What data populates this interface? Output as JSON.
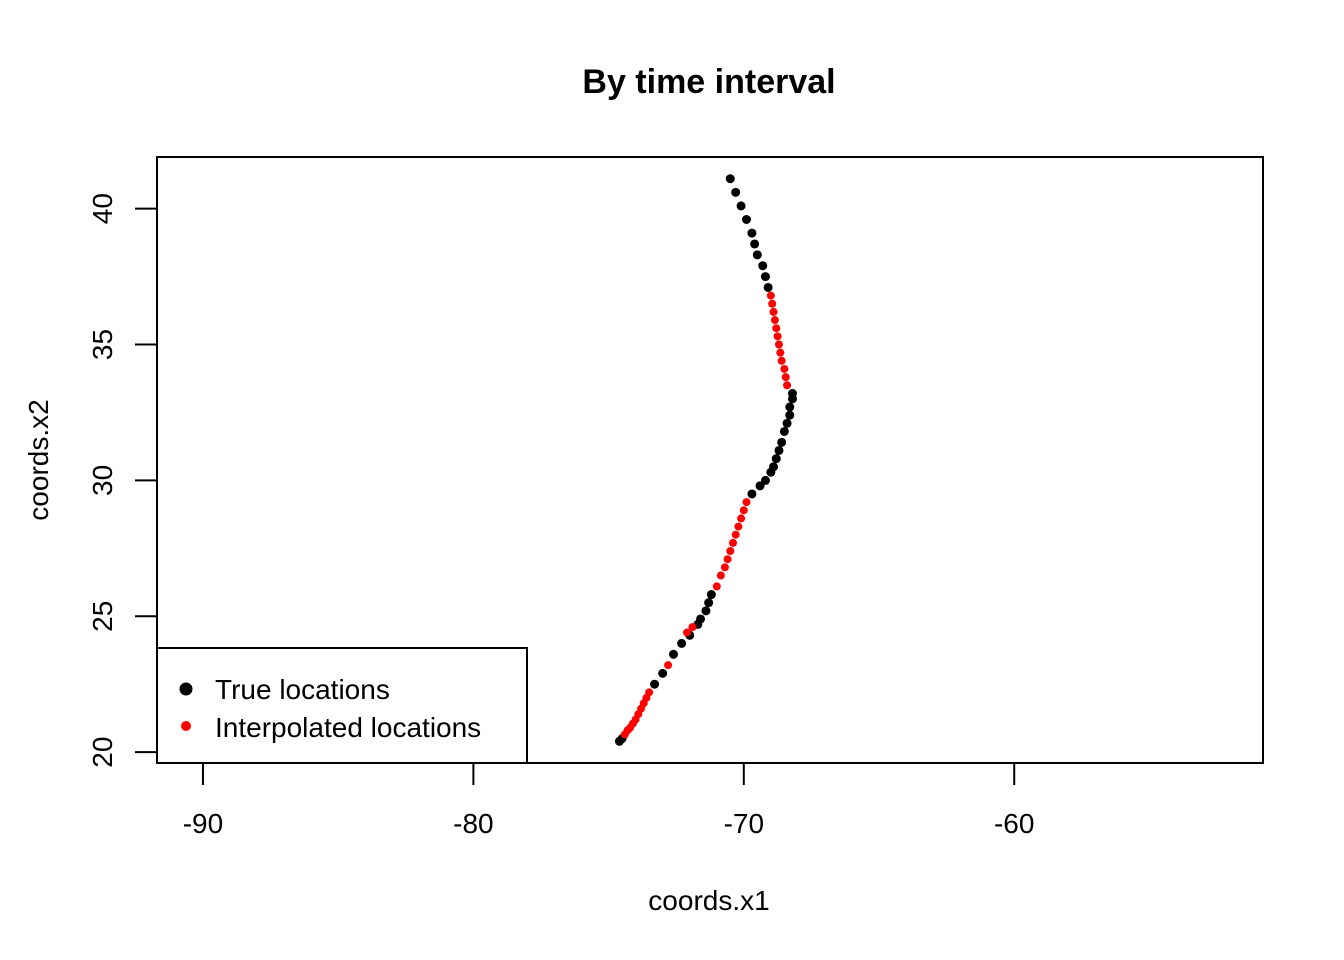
{
  "chart_data": {
    "type": "scatter",
    "title": "By time interval",
    "xlabel": "coords.x1",
    "ylabel": "coords.x2",
    "xlim": [
      -91.7,
      -50.8
    ],
    "ylim": [
      19.6,
      41.9
    ],
    "xticks": [
      -90,
      -80,
      -70,
      -60
    ],
    "yticks": [
      20,
      25,
      30,
      35,
      40
    ],
    "grid": false,
    "legend": {
      "position": "bottom-left",
      "entries": [
        {
          "label": "True locations",
          "color": "#000000",
          "marker": "filled-circle"
        },
        {
          "label": "Interpolated locations",
          "color": "#ff0000",
          "marker": "filled-circle-small"
        }
      ]
    },
    "series": [
      {
        "name": "True locations",
        "color": "#000000",
        "points": [
          [
            -70.5,
            41.1
          ],
          [
            -70.3,
            40.6
          ],
          [
            -70.1,
            40.1
          ],
          [
            -69.9,
            39.6
          ],
          [
            -69.7,
            39.1
          ],
          [
            -69.6,
            38.7
          ],
          [
            -69.5,
            38.3
          ],
          [
            -69.3,
            37.9
          ],
          [
            -69.2,
            37.5
          ],
          [
            -69.1,
            37.1
          ],
          [
            -68.2,
            33.2
          ],
          [
            -68.2,
            33.0
          ],
          [
            -68.3,
            32.7
          ],
          [
            -68.3,
            32.4
          ],
          [
            -68.4,
            32.1
          ],
          [
            -68.5,
            31.8
          ],
          [
            -68.6,
            31.4
          ],
          [
            -68.7,
            31.1
          ],
          [
            -68.8,
            30.8
          ],
          [
            -68.9,
            30.5
          ],
          [
            -69.0,
            30.3
          ],
          [
            -69.2,
            30.0
          ],
          [
            -69.4,
            29.8
          ],
          [
            -69.7,
            29.5
          ],
          [
            -71.2,
            25.8
          ],
          [
            -71.3,
            25.5
          ],
          [
            -71.4,
            25.2
          ],
          [
            -71.6,
            24.9
          ],
          [
            -71.7,
            24.7
          ],
          [
            -72.0,
            24.3
          ],
          [
            -72.3,
            24.0
          ],
          [
            -72.6,
            23.6
          ],
          [
            -73.0,
            22.9
          ],
          [
            -73.3,
            22.5
          ],
          [
            -74.5,
            20.5
          ],
          [
            -74.6,
            20.4
          ]
        ]
      },
      {
        "name": "Interpolated locations",
        "color": "#ff0000",
        "points": [
          [
            -69.0,
            36.8
          ],
          [
            -68.95,
            36.5
          ],
          [
            -68.9,
            36.2
          ],
          [
            -68.85,
            35.9
          ],
          [
            -68.8,
            35.6
          ],
          [
            -68.75,
            35.3
          ],
          [
            -68.7,
            35.0
          ],
          [
            -68.65,
            34.7
          ],
          [
            -68.6,
            34.4
          ],
          [
            -68.5,
            34.1
          ],
          [
            -68.45,
            33.8
          ],
          [
            -68.4,
            33.5
          ],
          [
            -69.9,
            29.2
          ],
          [
            -70.0,
            28.9
          ],
          [
            -70.1,
            28.6
          ],
          [
            -70.2,
            28.3
          ],
          [
            -70.3,
            28.0
          ],
          [
            -70.4,
            27.7
          ],
          [
            -70.5,
            27.4
          ],
          [
            -70.6,
            27.1
          ],
          [
            -70.7,
            26.8
          ],
          [
            -70.85,
            26.5
          ],
          [
            -71.0,
            26.1
          ],
          [
            -71.9,
            24.6
          ],
          [
            -72.1,
            24.4
          ],
          [
            -72.8,
            23.2
          ],
          [
            -73.5,
            22.2
          ],
          [
            -73.6,
            22.0
          ],
          [
            -73.7,
            21.8
          ],
          [
            -73.8,
            21.6
          ],
          [
            -73.9,
            21.4
          ],
          [
            -74.0,
            21.2
          ],
          [
            -74.1,
            21.05
          ],
          [
            -74.2,
            20.9
          ],
          [
            -74.3,
            20.8
          ],
          [
            -74.4,
            20.65
          ]
        ]
      }
    ]
  }
}
